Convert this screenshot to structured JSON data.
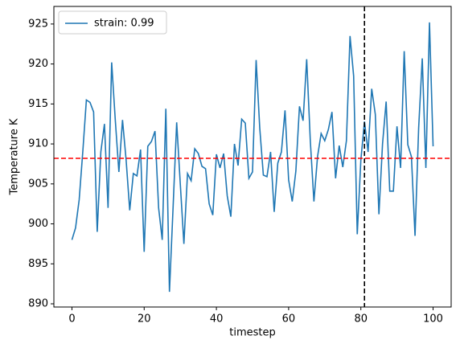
{
  "chart_data": {
    "type": "line",
    "xlabel": "timestep",
    "ylabel": "Temperature K",
    "x": [
      0,
      1,
      2,
      3,
      4,
      5,
      6,
      7,
      8,
      9,
      10,
      11,
      12,
      13,
      14,
      15,
      16,
      17,
      18,
      19,
      20,
      21,
      22,
      23,
      24,
      25,
      26,
      27,
      28,
      29,
      30,
      31,
      32,
      33,
      34,
      35,
      36,
      37,
      38,
      39,
      40,
      41,
      42,
      43,
      44,
      45,
      46,
      47,
      48,
      49,
      50,
      51,
      52,
      53,
      54,
      55,
      56,
      57,
      58,
      59,
      60,
      61,
      62,
      63,
      64,
      65,
      66,
      67,
      68,
      69,
      70,
      71,
      72,
      73,
      74,
      75,
      76,
      77,
      78,
      79,
      80,
      81,
      82,
      83,
      84,
      85,
      86,
      87,
      88,
      89,
      90,
      91,
      92,
      93,
      94,
      95,
      96,
      97,
      98,
      99,
      100
    ],
    "series": [
      {
        "name": "strain: 0.99",
        "color": "#1f77b4",
        "values": [
          898,
          899.5,
          903,
          909,
          915.5,
          915.2,
          914,
          899,
          909,
          912.5,
          902,
          920.2,
          913,
          906.5,
          913,
          908,
          901.7,
          906.3,
          906,
          909.3,
          896.5,
          909.7,
          910.3,
          911.6,
          902,
          898,
          914.4,
          891.5,
          902,
          912.7,
          905,
          897.5,
          906.3,
          905.4,
          909.4,
          908.8,
          907.2,
          906.9,
          902.5,
          901.1,
          908.7,
          907,
          908.8,
          903.5,
          900.9,
          910,
          907.3,
          913.1,
          912.6,
          905.7,
          906.5,
          920.5,
          912,
          906.1,
          905.9,
          909,
          901.5,
          907.6,
          909,
          914.2,
          905.5,
          902.8,
          906.6,
          914.7,
          912.9,
          920.6,
          910.4,
          902.8,
          908.4,
          911.3,
          910.4,
          911.8,
          914,
          905.7,
          909.8,
          907.1,
          910.4,
          923.5,
          918.5,
          898.7,
          908,
          912.8,
          909,
          916.9,
          913.7,
          901.2,
          910,
          915.3,
          904.1,
          904.1,
          912.2,
          907,
          921.6,
          909.9,
          908.4,
          898.5,
          912,
          920.7,
          907,
          925.2,
          909.7
        ]
      }
    ],
    "hline": {
      "value": 908.2,
      "color": "#ff0000"
    },
    "vline": {
      "value": 81,
      "color": "#000000"
    },
    "xlim": [
      -5,
      105
    ],
    "ylim": [
      889.6,
      927.2
    ],
    "xticks": [
      0,
      20,
      40,
      60,
      80,
      100
    ],
    "yticks": [
      890,
      895,
      900,
      905,
      910,
      915,
      920,
      925
    ],
    "legend": "upper left"
  }
}
